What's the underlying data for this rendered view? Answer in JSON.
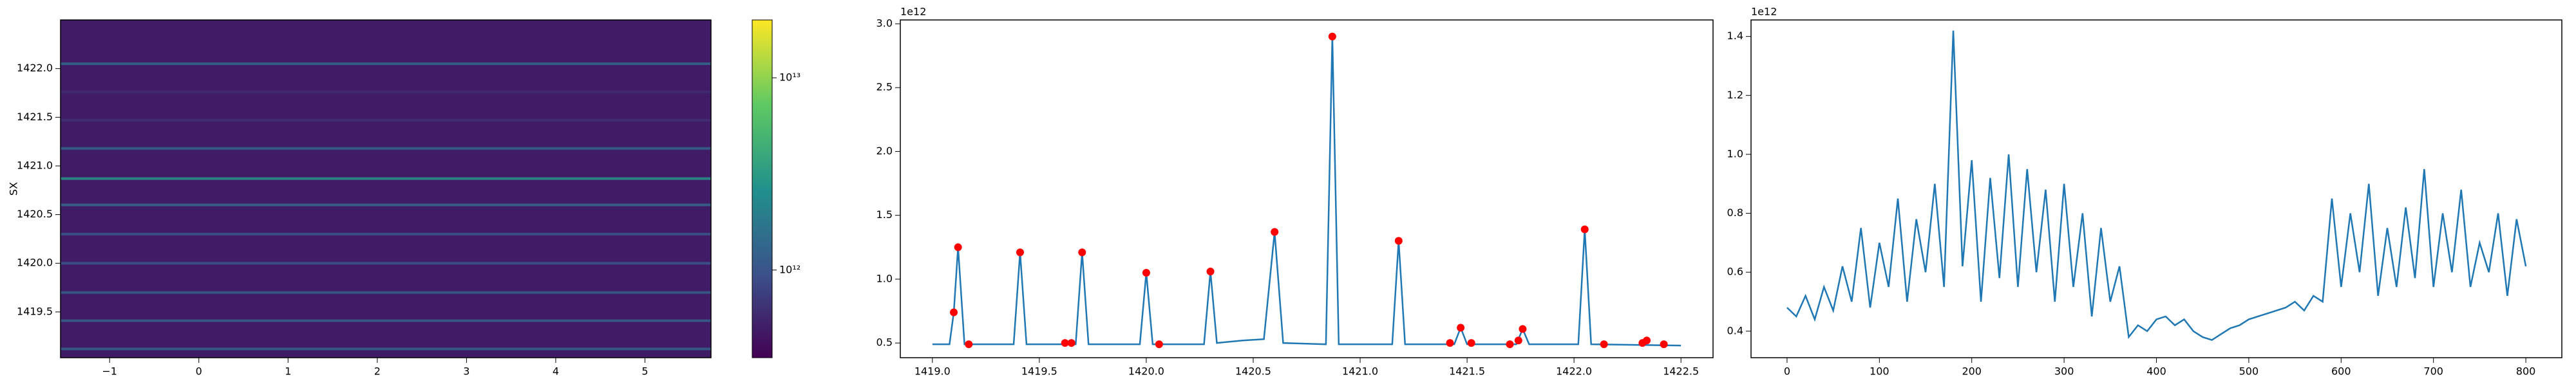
{
  "chart_data": [
    {
      "type": "heatmap",
      "ylabel": "SX",
      "xlim": [
        -1.55,
        5.74
      ],
      "ylim": [
        1419.03,
        1422.5
      ],
      "xticks": [
        {
          "value": -1,
          "label": "−1"
        },
        0,
        1,
        2,
        3,
        4,
        5
      ],
      "yticks": [
        {
          "value": 1419.5,
          "label": "1419.5"
        },
        {
          "value": 1420.0,
          "label": "1420.0"
        },
        {
          "value": 1420.5,
          "label": "1420.5"
        },
        {
          "value": 1421.0,
          "label": "1421.0"
        },
        {
          "value": 1421.5,
          "label": "1421.5"
        },
        {
          "value": 1422.0,
          "label": "1422.0"
        }
      ],
      "background_value": 490000000000,
      "lines": {
        "y": [
          1419.12,
          1419.41,
          1419.7,
          1420.0,
          1420.3,
          1420.6,
          1420.87,
          1421.18,
          1421.47,
          1421.76,
          1422.05
        ],
        "values": [
          1250000000000,
          1210000000000,
          1210000000000,
          1050000000000,
          1060000000000,
          1370000000000,
          2900000000000,
          1300000000000,
          620000000000,
          610000000000,
          1390000000000
        ]
      },
      "colorbar": {
        "scale": "log",
        "clim": [
          350000000000,
          20000000000000
        ],
        "ticks": [
          {
            "value": 1000000000000,
            "label": "10¹²"
          },
          {
            "value": 10000000000000,
            "label": "10¹³"
          }
        ]
      }
    },
    {
      "type": "line",
      "offset_label": "1e12",
      "xlim": [
        1418.85,
        1422.65
      ],
      "ylim": [
        0.385,
        3.03
      ],
      "xticks": [
        {
          "value": 1419.0,
          "label": "1419.0"
        },
        {
          "value": 1419.5,
          "label": "1419.5"
        },
        {
          "value": 1420.0,
          "label": "1420.0"
        },
        {
          "value": 1420.5,
          "label": "1420.5"
        },
        {
          "value": 1421.0,
          "label": "1421.0"
        },
        {
          "value": 1421.5,
          "label": "1421.5"
        },
        {
          "value": 1422.0,
          "label": "1422.0"
        },
        {
          "value": 1422.5,
          "label": "1422.5"
        }
      ],
      "yticks": [
        {
          "value": 0.5,
          "label": "0.5"
        },
        {
          "value": 1.0,
          "label": "1.0"
        },
        {
          "value": 1.5,
          "label": "1.5"
        },
        {
          "value": 2.0,
          "label": "2.0"
        },
        {
          "value": 2.5,
          "label": "2.5"
        },
        {
          "value": 3.0,
          "label": "3.0"
        }
      ],
      "series": [
        {
          "color": "#1f77b4",
          "x": [
            1419.0,
            1419.08,
            1419.1,
            1419.12,
            1419.15,
            1419.38,
            1419.41,
            1419.44,
            1419.67,
            1419.7,
            1419.73,
            1419.97,
            1420.0,
            1420.03,
            1420.27,
            1420.3,
            1420.33,
            1420.45,
            1420.55,
            1420.6,
            1420.64,
            1420.84,
            1420.87,
            1420.9,
            1421.15,
            1421.18,
            1421.21,
            1421.44,
            1421.47,
            1421.5,
            1421.73,
            1421.76,
            1421.79,
            1422.02,
            1422.05,
            1422.08,
            1422.5
          ],
          "values": [
            0.49,
            0.49,
            0.74,
            1.25,
            0.49,
            0.49,
            1.21,
            0.49,
            0.49,
            1.21,
            0.49,
            0.49,
            1.05,
            0.49,
            0.49,
            1.06,
            0.5,
            0.52,
            0.53,
            1.37,
            0.5,
            0.49,
            2.9,
            0.49,
            0.49,
            1.3,
            0.49,
            0.49,
            0.62,
            0.49,
            0.49,
            0.61,
            0.49,
            0.49,
            1.39,
            0.49,
            0.48
          ]
        }
      ],
      "points": {
        "color": "#ff0000",
        "x": [
          1419.1,
          1419.12,
          1419.17,
          1419.41,
          1419.62,
          1419.65,
          1419.7,
          1420.0,
          1420.06,
          1420.3,
          1420.6,
          1420.87,
          1421.18,
          1421.42,
          1421.47,
          1421.52,
          1421.7,
          1421.74,
          1421.76,
          1422.05,
          1422.14,
          1422.32,
          1422.34,
          1422.42
        ],
        "values": [
          0.74,
          1.25,
          0.49,
          1.21,
          0.5,
          0.5,
          1.21,
          1.05,
          0.49,
          1.06,
          1.37,
          2.9,
          1.3,
          0.5,
          0.62,
          0.5,
          0.49,
          0.52,
          0.61,
          1.39,
          0.49,
          0.5,
          0.52,
          0.49
        ]
      }
    },
    {
      "type": "line",
      "offset_label": "1e12",
      "xlim": [
        -39,
        839
      ],
      "ylim": [
        0.31,
        1.456
      ],
      "xticks": [
        0,
        100,
        200,
        300,
        400,
        500,
        600,
        700,
        800
      ],
      "yticks": [
        {
          "value": 0.4,
          "label": "0.4"
        },
        {
          "value": 0.6,
          "label": "0.6"
        },
        {
          "value": 0.8,
          "label": "0.8"
        },
        {
          "value": 1.0,
          "label": "1.0"
        },
        {
          "value": 1.2,
          "label": "1.2"
        },
        {
          "value": 1.4,
          "label": "1.4"
        }
      ],
      "series": [
        {
          "color": "#1f77b4",
          "x": [
            0,
            10,
            20,
            30,
            40,
            50,
            60,
            70,
            80,
            90,
            100,
            110,
            120,
            130,
            140,
            150,
            160,
            170,
            180,
            190,
            200,
            210,
            220,
            230,
            240,
            250,
            260,
            270,
            280,
            290,
            300,
            310,
            320,
            330,
            340,
            350,
            360,
            370,
            380,
            390,
            400,
            410,
            420,
            430,
            440,
            450,
            460,
            470,
            480,
            490,
            500,
            510,
            520,
            530,
            540,
            550,
            560,
            570,
            580,
            590,
            600,
            610,
            620,
            630,
            640,
            650,
            660,
            670,
            680,
            690,
            700,
            710,
            720,
            730,
            740,
            750,
            760,
            770,
            780,
            790,
            800
          ],
          "values": [
            0.48,
            0.45,
            0.52,
            0.44,
            0.55,
            0.47,
            0.62,
            0.5,
            0.75,
            0.48,
            0.7,
            0.55,
            0.85,
            0.5,
            0.78,
            0.6,
            0.9,
            0.55,
            1.42,
            0.62,
            0.98,
            0.5,
            0.92,
            0.58,
            1.0,
            0.55,
            0.95,
            0.6,
            0.88,
            0.5,
            0.9,
            0.55,
            0.8,
            0.45,
            0.75,
            0.5,
            0.62,
            0.38,
            0.42,
            0.4,
            0.44,
            0.45,
            0.42,
            0.44,
            0.4,
            0.38,
            0.37,
            0.39,
            0.41,
            0.42,
            0.44,
            0.45,
            0.46,
            0.47,
            0.48,
            0.5,
            0.47,
            0.52,
            0.5,
            0.85,
            0.55,
            0.8,
            0.6,
            0.9,
            0.52,
            0.75,
            0.55,
            0.82,
            0.58,
            0.95,
            0.55,
            0.8,
            0.6,
            0.88,
            0.55,
            0.7,
            0.6,
            0.8,
            0.52,
            0.78,
            0.62
          ]
        }
      ]
    }
  ]
}
